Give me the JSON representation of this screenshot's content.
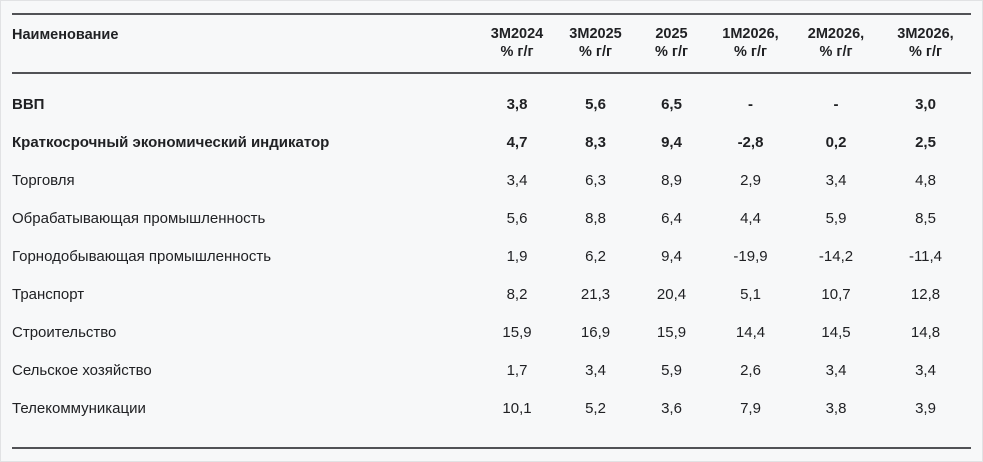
{
  "chart_data": {
    "type": "table",
    "header": {
      "name": "Наименование",
      "periods": [
        {
          "period": "3М2024",
          "unit": "% г/г"
        },
        {
          "period": "3М2025",
          "unit": "% г/г"
        },
        {
          "period": "2025",
          "unit": "% г/г"
        },
        {
          "period": "1М2026,",
          "unit": "% г/г"
        },
        {
          "period": "2М2026,",
          "unit": "% г/г"
        },
        {
          "period": "3М2026,",
          "unit": "% г/г"
        }
      ]
    },
    "rows": [
      {
        "label": "ВВП",
        "emphasis": true,
        "values": [
          "3,8",
          "5,6",
          "6,5",
          "-",
          "-",
          "3,0"
        ]
      },
      {
        "label": "Краткосрочный экономический индикатор",
        "emphasis": true,
        "values": [
          "4,7",
          "8,3",
          "9,4",
          "-2,8",
          "0,2",
          "2,5"
        ]
      },
      {
        "label": "Торговля",
        "emphasis": false,
        "values": [
          "3,4",
          "6,3",
          "8,9",
          "2,9",
          "3,4",
          "4,8"
        ]
      },
      {
        "label": "Обрабатывающая промышленность",
        "emphasis": false,
        "values": [
          "5,6",
          "8,8",
          "6,4",
          "4,4",
          "5,9",
          "8,5"
        ]
      },
      {
        "label": "Горнодобывающая промышленность",
        "emphasis": false,
        "values": [
          "1,9",
          "6,2",
          "9,4",
          "-19,9",
          "-14,2",
          "-11,4"
        ]
      },
      {
        "label": "Транспорт",
        "emphasis": false,
        "values": [
          "8,2",
          "21,3",
          "20,4",
          "5,1",
          "10,7",
          "12,8"
        ]
      },
      {
        "label": "Строительство",
        "emphasis": false,
        "values": [
          "15,9",
          "16,9",
          "15,9",
          "14,4",
          "14,5",
          "14,8"
        ]
      },
      {
        "label": "Сельское хозяйство",
        "emphasis": false,
        "values": [
          "1,7",
          "3,4",
          "5,9",
          "2,6",
          "3,4",
          "3,4"
        ]
      },
      {
        "label": "Телекоммуникации",
        "emphasis": false,
        "values": [
          "10,1",
          "5,2",
          "3,6",
          "7,9",
          "3,8",
          "3,9"
        ]
      }
    ],
    "colors": {
      "background": "#f7f8f9",
      "rule": "#515256",
      "text": "#202124"
    }
  }
}
